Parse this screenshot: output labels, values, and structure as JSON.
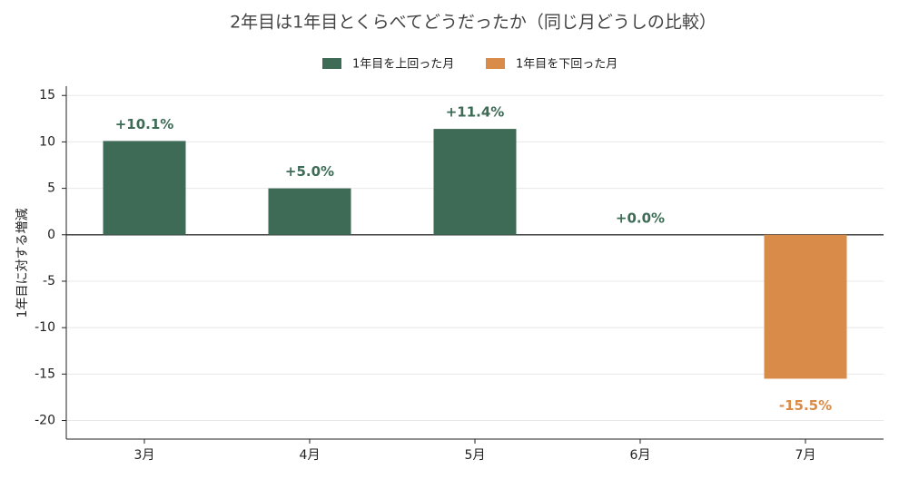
{
  "chart_data": {
    "type": "bar",
    "title": "2年目は1年目とくらべてどうだったか（同じ月どうしの比較）",
    "y_label": "1年目に対する増減",
    "categories": [
      "3月",
      "4月",
      "5月",
      "6月",
      "7月"
    ],
    "series": [
      {
        "name": "1年目を上回った月",
        "color": "#3d6b55",
        "values": [
          10.1,
          5.0,
          11.4,
          0.0,
          null
        ],
        "value_labels": [
          "+10.1%",
          "+5.0%",
          "+11.4%",
          "+0.0%",
          null
        ]
      },
      {
        "name": "1年目を下回った月",
        "color": "#d98c4a",
        "values": [
          null,
          null,
          null,
          null,
          -15.5
        ],
        "value_labels": [
          null,
          null,
          null,
          null,
          "-15.5%"
        ]
      }
    ],
    "ylim": [
      -22,
      16
    ],
    "yticks": [
      -20,
      -15,
      -10,
      -5,
      0,
      5,
      10,
      15
    ],
    "grid": true,
    "legend": "top"
  }
}
